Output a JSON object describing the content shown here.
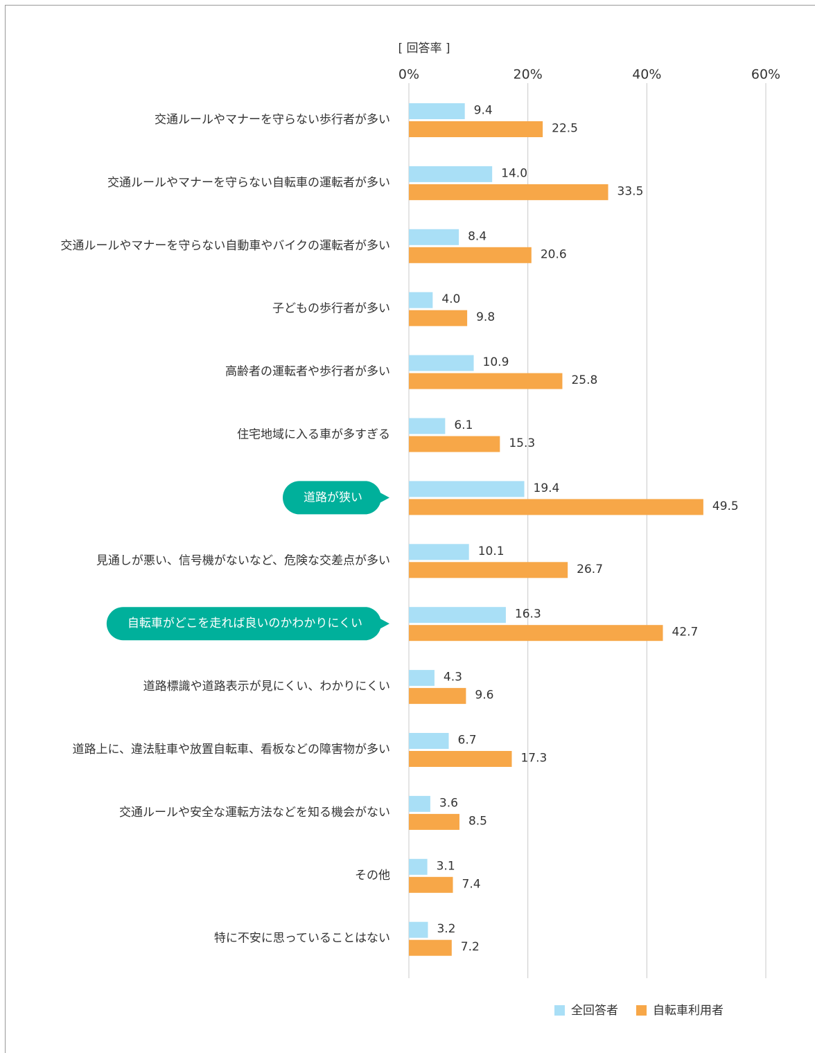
{
  "chart_data": {
    "type": "bar",
    "orientation": "horizontal",
    "axis_label": "[ 回答率 ]",
    "categories": [
      "交通ルールやマナーを守らない歩行者が多い",
      "交通ルールやマナーを守らない自転車の運転者が多い",
      "交通ルールやマナーを守らない自動車やバイクの運転者が多い",
      "子どもの歩行者が多い",
      "高齢者の運転者や歩行者が多い",
      "住宅地域に入る車が多すぎる",
      "道路が狭い",
      "見通しが悪い、信号機がないなど、危険な交差点が多い",
      "自転車がどこを走れば良いのかわかりにくい",
      "道路標識や道路表示が見にくい、わかりにくい",
      "道路上に、違法駐車や放置自転車、看板などの障害物が多い",
      "交通ルールや安全な運転方法などを知る機会がない",
      "その他",
      "特に不安に思っていることはない"
    ],
    "series": [
      {
        "name": "全回答者",
        "color": "#a9dff6",
        "values": [
          9.4,
          14.0,
          8.4,
          4.0,
          10.9,
          6.1,
          19.4,
          10.1,
          16.3,
          4.3,
          6.7,
          3.6,
          3.1,
          3.2
        ],
        "value_labels": [
          "9.4",
          "14.0",
          "8.4",
          "4.0",
          "10.9",
          "6.1",
          "19.4",
          "10.1",
          "16.3",
          "4.3",
          "6.7",
          "3.6",
          "3.1",
          "3.2"
        ]
      },
      {
        "name": "自転車利用者",
        "color": "#f7a748",
        "values": [
          22.5,
          33.5,
          20.6,
          9.8,
          25.8,
          15.3,
          49.5,
          26.7,
          42.7,
          9.6,
          17.3,
          8.5,
          7.4,
          7.2
        ],
        "value_labels": [
          "22.5",
          "33.5",
          "20.6",
          "9.8",
          "25.8",
          "15.3",
          "49.5",
          "26.7",
          "42.7",
          "9.6",
          "17.3",
          "8.5",
          "7.4",
          "7.2"
        ]
      }
    ],
    "xlim": [
      0,
      60
    ],
    "xticks": [
      {
        "value": 0,
        "label": "0%"
      },
      {
        "value": 20,
        "label": "20%"
      },
      {
        "value": 40,
        "label": "40%"
      },
      {
        "value": 60,
        "label": "60%"
      }
    ],
    "grid": true,
    "highlighted": [
      6,
      8
    ],
    "highlight_color": "#00b09b",
    "legend": "bottom-right"
  }
}
